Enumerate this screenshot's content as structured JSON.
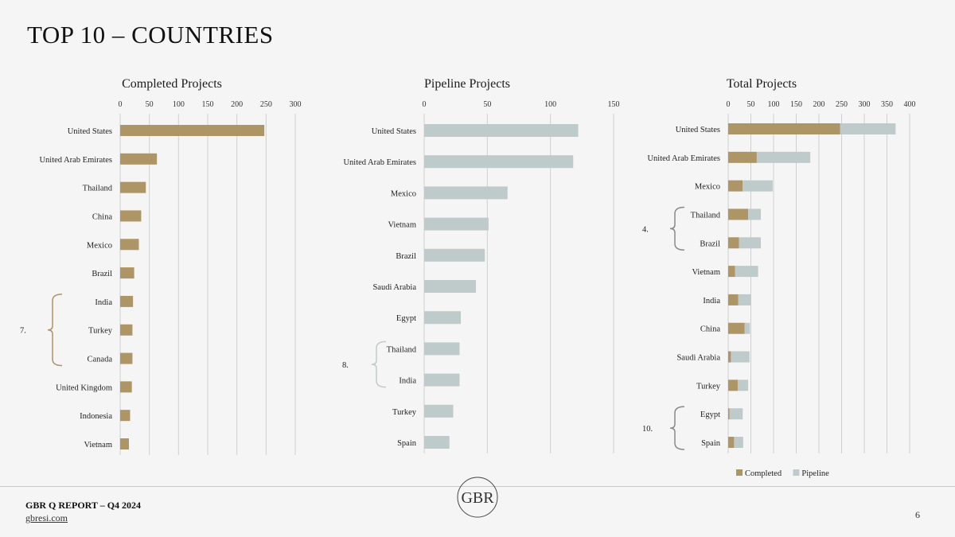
{
  "page": {
    "title": "TOP 10 – COUNTRIES",
    "footer_report": "GBR Q REPORT – Q4 2024",
    "footer_url": "gbresi.com",
    "page_number": "6",
    "logo_text": "GBR"
  },
  "colors": {
    "completed": "#ae9565",
    "pipeline": "#bfcbcb",
    "grid": "#cfcfcf",
    "bracket_completed": "#ae9565",
    "bracket_pipeline": "#bfcbcb",
    "bracket_total": "#8a8a8a"
  },
  "chart_data": [
    {
      "type": "bar",
      "orientation": "horizontal",
      "title": "Completed Projects",
      "xlim": [
        0,
        300
      ],
      "ticks": [
        0,
        50,
        100,
        150,
        200,
        250,
        300
      ],
      "categories": [
        "United States",
        "United Arab Emirates",
        "Thailand",
        "China",
        "Mexico",
        "Brazil",
        "India",
        "Turkey",
        "Canada",
        "United Kingdom",
        "Indonesia",
        "Vietnam"
      ],
      "series": [
        {
          "key": "completed",
          "values": [
            247,
            63,
            44,
            36,
            32,
            24,
            22,
            21,
            21,
            20,
            17,
            15
          ]
        }
      ],
      "annotation": {
        "label": "7.",
        "from": 6,
        "to": 8
      }
    },
    {
      "type": "bar",
      "orientation": "horizontal",
      "title": "Pipeline Projects",
      "xlim": [
        0,
        150
      ],
      "ticks": [
        0,
        50,
        100,
        150
      ],
      "categories": [
        "United States",
        "United Arab Emirates",
        "Mexico",
        "Vietnam",
        "Brazil",
        "Saudi Arabia",
        "Egypt",
        "Thailand",
        "India",
        "Turkey",
        "Spain"
      ],
      "series": [
        {
          "key": "pipeline",
          "values": [
            122,
            118,
            66,
            51,
            48,
            41,
            29,
            28,
            28,
            23,
            20
          ]
        }
      ],
      "annotation": {
        "label": "8.",
        "from": 7,
        "to": 8
      }
    },
    {
      "type": "bar",
      "orientation": "horizontal",
      "stacked": true,
      "title": "Total Projects",
      "xlim": [
        0,
        400
      ],
      "ticks": [
        0,
        50,
        100,
        150,
        200,
        250,
        300,
        350,
        400
      ],
      "categories": [
        "United States",
        "United Arab Emirates",
        "Mexico",
        "Thailand",
        "Brazil",
        "Vietnam",
        "India",
        "China",
        "Saudi Arabia",
        "Turkey",
        "Egypt",
        "Spain"
      ],
      "series": [
        {
          "name": "Completed",
          "key": "completed",
          "values": [
            247,
            63,
            32,
            44,
            24,
            15,
            22,
            36,
            6,
            21,
            3,
            13
          ]
        },
        {
          "name": "Pipeline",
          "key": "pipeline",
          "values": [
            122,
            118,
            66,
            28,
            48,
            51,
            28,
            12,
            41,
            23,
            29,
            20
          ]
        }
      ],
      "annotations": [
        {
          "label": "4.",
          "from": 3,
          "to": 4
        },
        {
          "label": "10.",
          "from": 10,
          "to": 11
        }
      ],
      "legend": "bottom"
    }
  ]
}
